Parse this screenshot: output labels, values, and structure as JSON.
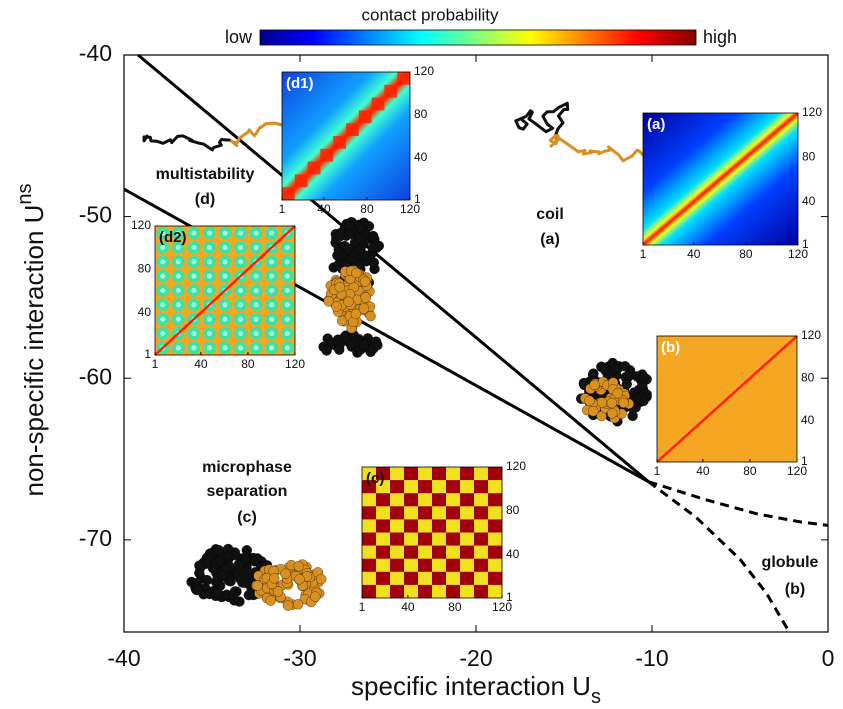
{
  "chart_data": {
    "type": "line",
    "colorbar_title": "contact probability",
    "colorbar_low": "low",
    "colorbar_high": "high",
    "xlabel": "specific interaction U",
    "xlabel_sub": "s",
    "ylabel": "non-specific interaction U",
    "ylabel_sub": "ns",
    "xlim": [
      -40,
      0
    ],
    "ylim": [
      -75.7,
      -40
    ],
    "xticks": [
      -40,
      -30,
      -20,
      -10,
      0
    ],
    "yticks": [
      -70,
      -60,
      -50,
      -40
    ],
    "series": [
      {
        "color": "#000000",
        "dashed": false,
        "x": [
          -39.2,
          -10.2
        ],
        "values": [
          -40,
          -66.4
        ]
      },
      {
        "color": "#000000",
        "dashed": false,
        "x": [
          -40,
          -10.2
        ],
        "values": [
          -48.3,
          -66.4
        ]
      },
      {
        "color": "#000000",
        "dashed": true,
        "x": [
          -10.2,
          -7,
          -4,
          -1.5,
          0
        ],
        "values": [
          -66.4,
          -67.5,
          -68.4,
          -68.9,
          -69.1
        ]
      },
      {
        "color": "#000000",
        "dashed": true,
        "x": [
          -10.2,
          -7.5,
          -5,
          -3.5,
          -2.2
        ],
        "values": [
          -66.4,
          -68.6,
          -71.2,
          -73.3,
          -75.7
        ]
      }
    ],
    "annotations": [
      "multistability",
      "(d)",
      "coil",
      "(a)",
      "microphase",
      "separation",
      "(c)",
      "globule",
      "(b)"
    ],
    "insets": [
      {
        "label": "(d1)",
        "ticks": [
          1,
          40,
          80,
          120
        ]
      },
      {
        "label": "(a)",
        "ticks": [
          1,
          40,
          80,
          120
        ]
      },
      {
        "label": "(d2)",
        "ticks": [
          1,
          40,
          80,
          120
        ]
      },
      {
        "label": "(b)",
        "ticks": [
          1,
          40,
          80,
          120
        ]
      },
      {
        "label": "(c)",
        "ticks": [
          1,
          40,
          80,
          120
        ]
      }
    ]
  }
}
